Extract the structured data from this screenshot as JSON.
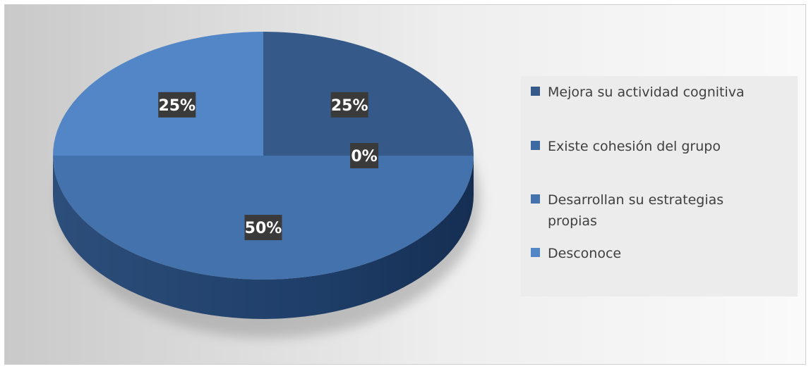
{
  "chart_data": {
    "type": "pie",
    "title": "",
    "categories": [
      "Mejora su actividad cognitiva",
      "Existe cohesión del grupo",
      "Desarrollan su estrategias propias",
      "Desconoce"
    ],
    "values": [
      25,
      0,
      50,
      25
    ],
    "data_labels": [
      "25%",
      "0%",
      "50%",
      "25%"
    ],
    "colors": [
      "#355a8a",
      "#3e6aa3",
      "#4472ad",
      "#5386c6"
    ],
    "legend_placement": "right",
    "legend": [
      {
        "lines": [
          "Mejora su actividad cognitiva"
        ]
      },
      {
        "lines": [
          "Existe cohesión del grupo"
        ]
      },
      {
        "lines": [
          "Desarrollan su estrategias",
          "propias"
        ]
      },
      {
        "lines": [
          "Desconoce"
        ]
      }
    ]
  }
}
